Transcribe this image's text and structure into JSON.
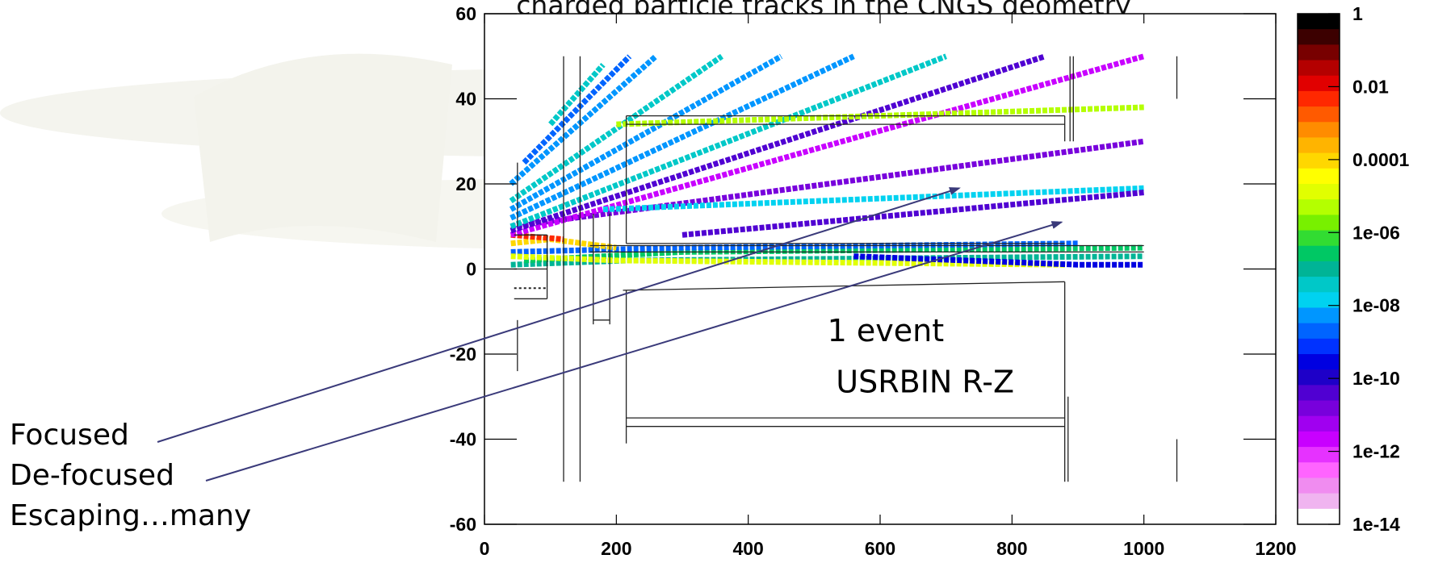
{
  "chart_data": {
    "type": "heatmap",
    "title": "charged particle tracks in the CNGS geometry",
    "xlim": [
      0,
      1200
    ],
    "ylim": [
      -60,
      60
    ],
    "x_ticks": [
      "0",
      "200",
      "400",
      "600",
      "800",
      "1000",
      "1200"
    ],
    "y_ticks": [
      "60",
      "40",
      "20",
      "0",
      "-20",
      "-40",
      "-60"
    ],
    "colorbar": {
      "scale": "log",
      "range": [
        1e-14,
        1
      ],
      "labels": [
        "1",
        "0.01",
        "0.0001",
        "1e-06",
        "1e-08",
        "1e-10",
        "1e-12",
        "1e-14"
      ],
      "colors": [
        "#000000",
        "#3c0000",
        "#780000",
        "#b40000",
        "#e10000",
        "#ff2800",
        "#ff5a00",
        "#ff8c00",
        "#ffb400",
        "#ffd700",
        "#ffff00",
        "#e1ff00",
        "#b4ff00",
        "#78f000",
        "#32dc32",
        "#00c864",
        "#00b496",
        "#00c8c8",
        "#00d2f0",
        "#0096ff",
        "#0064ff",
        "#0032ff",
        "#0000e1",
        "#1e00c8",
        "#5000d2",
        "#7800dc",
        "#a000f0",
        "#c800ff",
        "#e632ff",
        "#ff64ff",
        "#f08cf0",
        "#f0b4f0",
        "#ffffff"
      ]
    },
    "tracks": [
      {
        "x": [
          40,
          220,
          1000
        ],
        "y": [
          1,
          2,
          3
        ],
        "color": "#00b496"
      },
      {
        "x": [
          60,
          300,
          1000
        ],
        "y": [
          2,
          4,
          5
        ],
        "color": "#00c864"
      },
      {
        "x": [
          40,
          300,
          900
        ],
        "y": [
          4,
          5,
          6
        ],
        "color": "#0064ff"
      },
      {
        "x": [
          40,
          100,
          200
        ],
        "y": [
          6,
          7,
          5
        ],
        "color": "#ffd700"
      },
      {
        "x": [
          40,
          120
        ],
        "y": [
          8,
          7
        ],
        "color": "#ff2800"
      },
      {
        "x": [
          40,
          200,
          880
        ],
        "y": [
          3,
          2,
          1
        ],
        "color": "#e1ff00"
      },
      {
        "x": [
          560,
          900,
          1000
        ],
        "y": [
          3,
          1,
          1
        ],
        "color": "#0000e1"
      },
      {
        "x": [
          40,
          1000
        ],
        "y": [
          10,
          30
        ],
        "color": "#7800dc"
      },
      {
        "x": [
          40,
          1000
        ],
        "y": [
          8,
          50
        ],
        "color": "#c800ff"
      },
      {
        "x": [
          40,
          850
        ],
        "y": [
          9,
          50
        ],
        "color": "#5000d2"
      },
      {
        "x": [
          40,
          700
        ],
        "y": [
          10,
          50
        ],
        "color": "#00c8c8"
      },
      {
        "x": [
          40,
          560
        ],
        "y": [
          12,
          50
        ],
        "color": "#0096ff"
      },
      {
        "x": [
          40,
          450
        ],
        "y": [
          14,
          50
        ],
        "color": "#0096ff"
      },
      {
        "x": [
          40,
          360
        ],
        "y": [
          16,
          50
        ],
        "color": "#00c8c8"
      },
      {
        "x": [
          40,
          260
        ],
        "y": [
          20,
          50
        ],
        "color": "#0096ff"
      },
      {
        "x": [
          60,
          220
        ],
        "y": [
          25,
          50
        ],
        "color": "#0064ff"
      },
      {
        "x": [
          100,
          180
        ],
        "y": [
          34,
          48
        ],
        "color": "#00c8c8"
      },
      {
        "x": [
          180,
          1000
        ],
        "y": [
          14,
          19
        ],
        "color": "#00d2f0"
      },
      {
        "x": [
          300,
          1000
        ],
        "y": [
          8,
          18
        ],
        "color": "#5000d2"
      },
      {
        "x": [
          200,
          1000
        ],
        "y": [
          34,
          38
        ],
        "color": "#b4ff00"
      }
    ],
    "annotations": [
      {
        "text": "1 event",
        "x": 520,
        "y": -17
      },
      {
        "text": "USRBIN  R-Z",
        "x": 533,
        "y": -29
      }
    ]
  },
  "side_labels": [
    "Focused",
    "De-focused",
    "Escaping…many"
  ]
}
